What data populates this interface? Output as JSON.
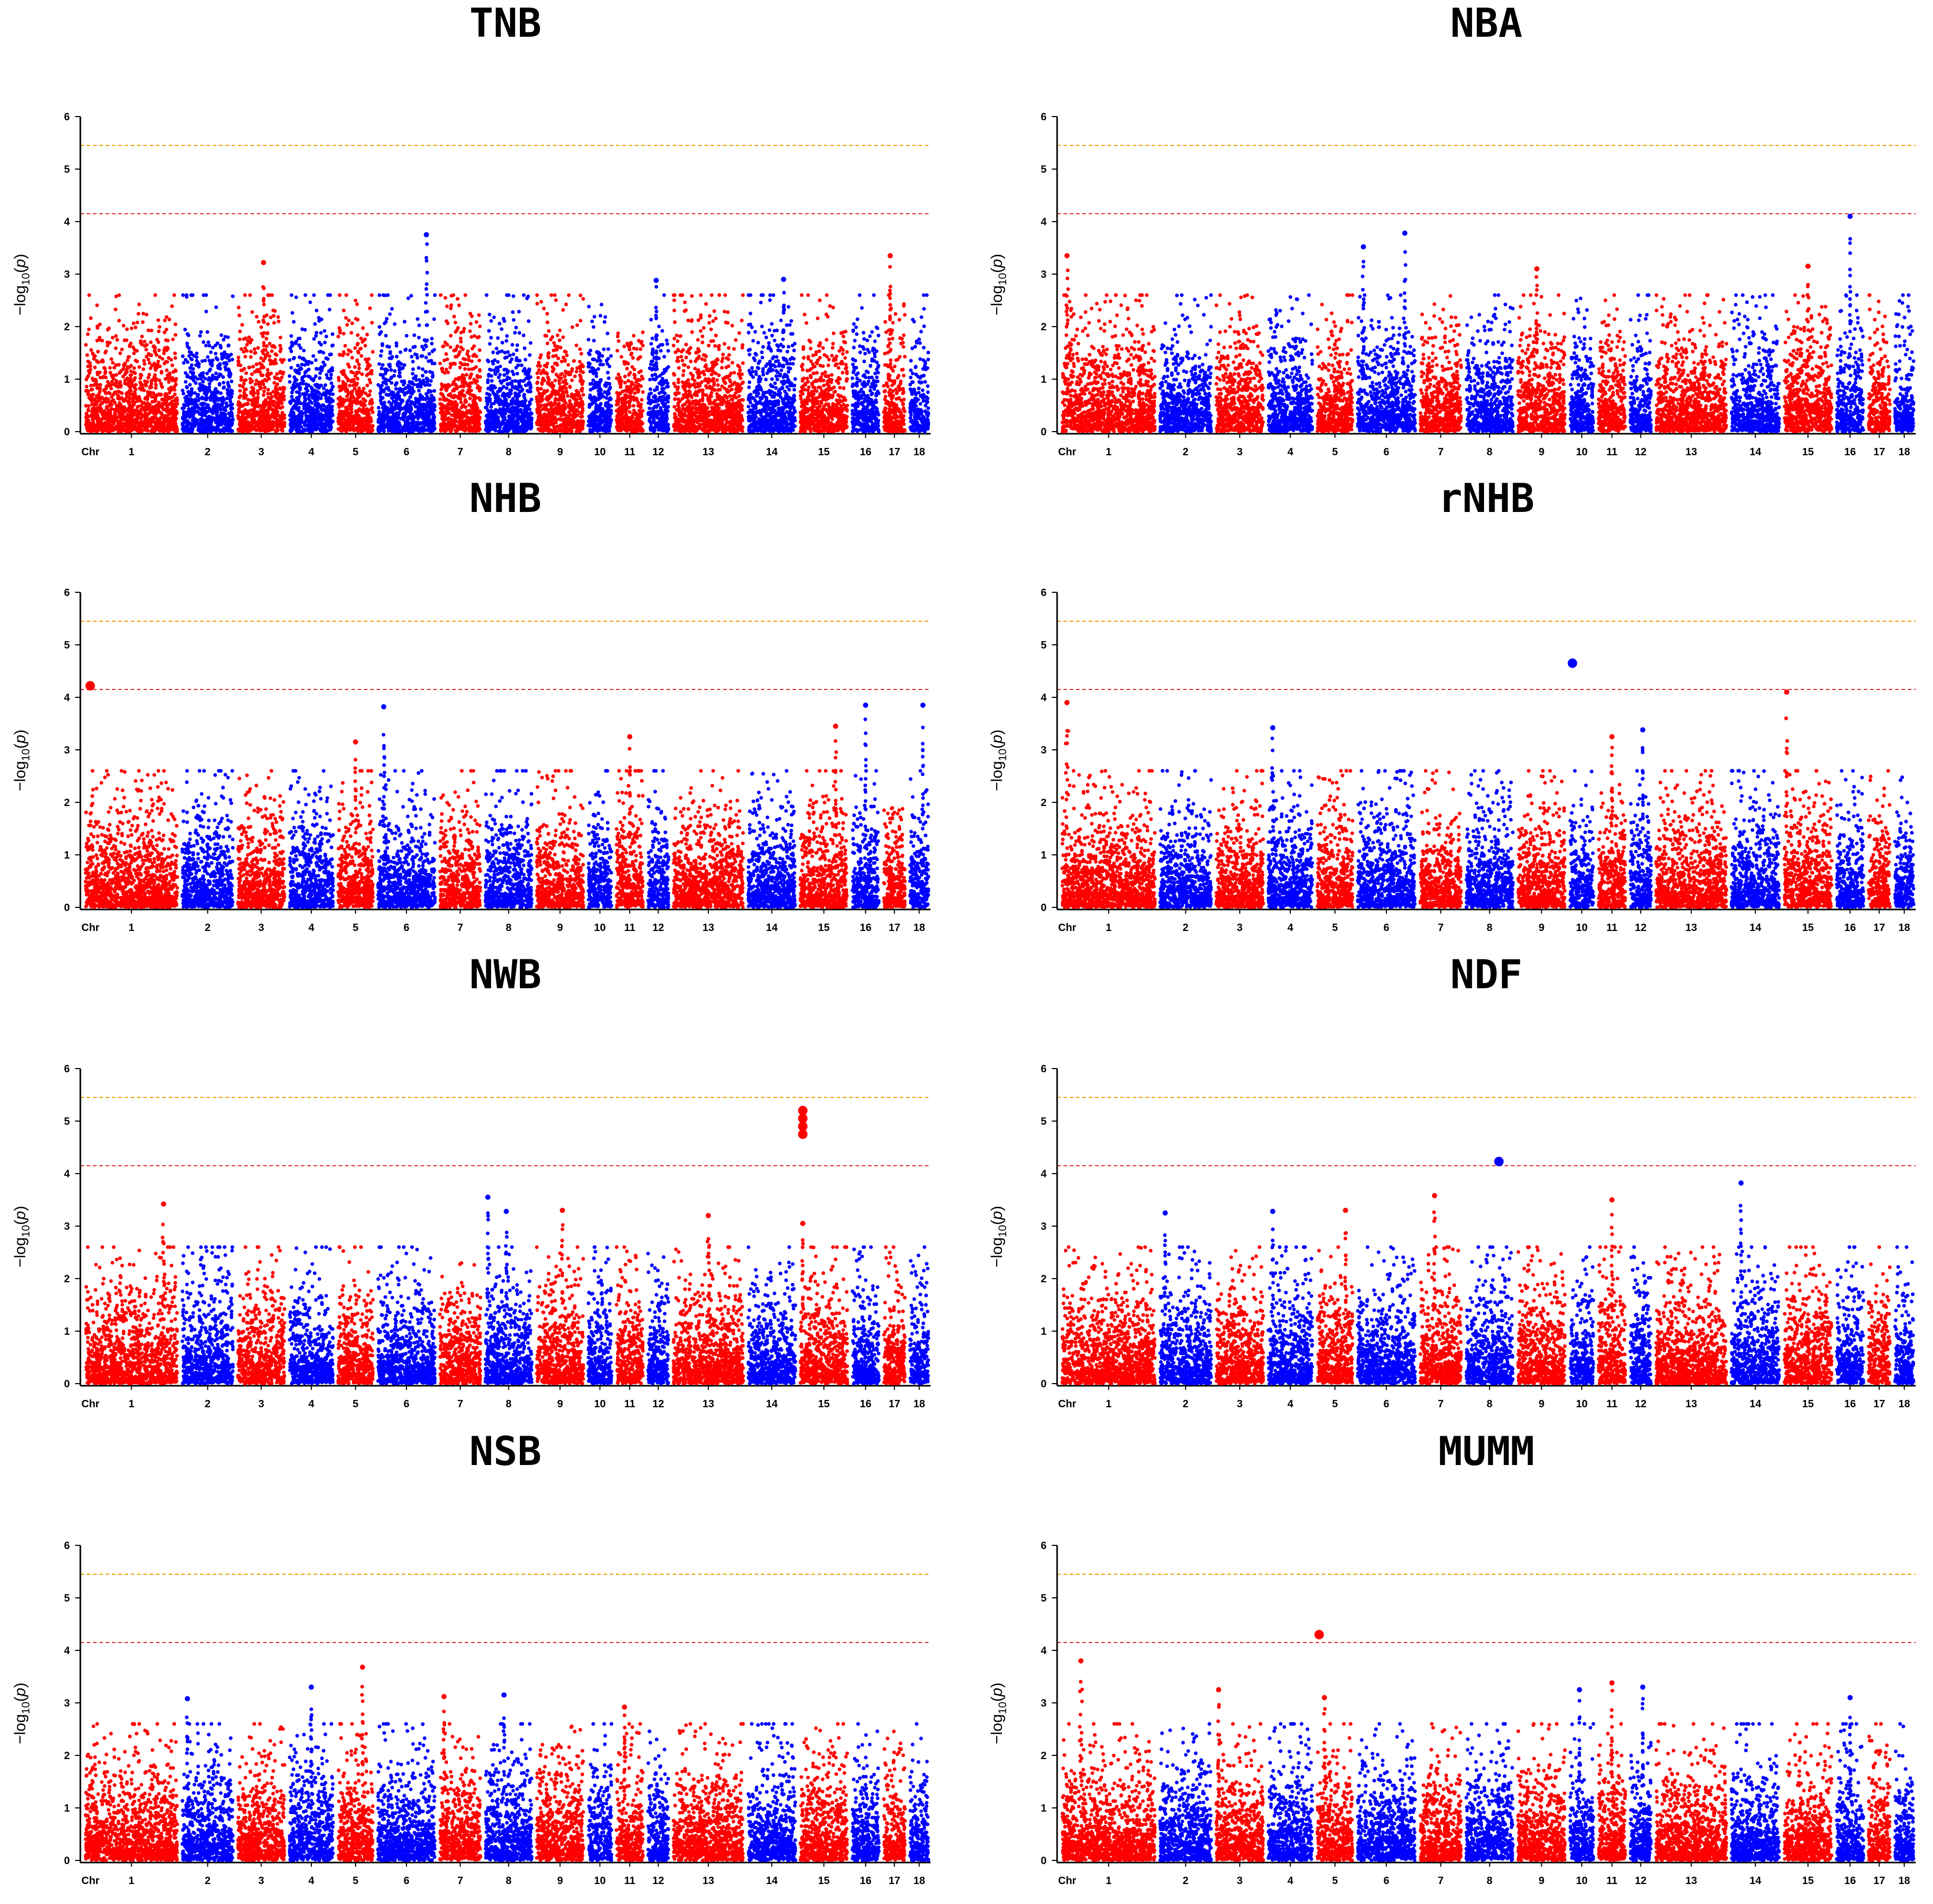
{
  "chart_data": {
    "type": "scatter",
    "subtype": "manhattan",
    "panels": [
      {
        "title": "TNB",
        "highlights": [
          {
            "chr": 6,
            "pos": 0.85,
            "y": 3.75
          },
          {
            "chr": 3,
            "pos": 0.55,
            "y": 3.22
          },
          {
            "chr": 17,
            "pos": 0.3,
            "y": 3.35
          },
          {
            "chr": 12,
            "pos": 0.4,
            "y": 2.88
          },
          {
            "chr": 14,
            "pos": 0.75,
            "y": 2.9
          }
        ],
        "big_points": []
      },
      {
        "title": "NBA",
        "highlights": [
          {
            "chr": 6,
            "pos": 0.82,
            "y": 3.78
          },
          {
            "chr": 6,
            "pos": 0.1,
            "y": 3.52
          },
          {
            "chr": 16,
            "pos": 0.5,
            "y": 4.1
          },
          {
            "chr": 1,
            "pos": 0.05,
            "y": 3.35
          },
          {
            "chr": 15,
            "pos": 0.5,
            "y": 3.15
          },
          {
            "chr": 9,
            "pos": 0.4,
            "y": 3.1
          }
        ],
        "big_points": []
      },
      {
        "title": "NHB",
        "highlights": [
          {
            "chr": 6,
            "pos": 0.1,
            "y": 3.82
          },
          {
            "chr": 16,
            "pos": 0.5,
            "y": 3.85
          },
          {
            "chr": 18,
            "pos": 0.7,
            "y": 3.85
          },
          {
            "chr": 11,
            "pos": 0.5,
            "y": 3.25
          },
          {
            "chr": 5,
            "pos": 0.5,
            "y": 3.15
          },
          {
            "chr": 15,
            "pos": 0.75,
            "y": 3.45
          }
        ],
        "big_points": [
          {
            "chr": 1,
            "pos": 0.05,
            "y": 4.22
          }
        ]
      },
      {
        "title": "rNHB",
        "highlights": [
          {
            "chr": 15,
            "pos": 0.05,
            "y": 4.1
          },
          {
            "chr": 1,
            "pos": 0.05,
            "y": 3.9
          },
          {
            "chr": 12,
            "pos": 0.6,
            "y": 3.38
          },
          {
            "chr": 4,
            "pos": 0.1,
            "y": 3.42
          },
          {
            "chr": 11,
            "pos": 0.5,
            "y": 3.25
          }
        ],
        "big_points": [
          {
            "chr": 10,
            "pos": 0.1,
            "y": 4.65
          }
        ]
      },
      {
        "title": "NWB",
        "highlights": [
          {
            "chr": 8,
            "pos": 0.05,
            "y": 3.55
          },
          {
            "chr": 1,
            "pos": 0.85,
            "y": 3.42
          },
          {
            "chr": 9,
            "pos": 0.55,
            "y": 3.3
          },
          {
            "chr": 8,
            "pos": 0.45,
            "y": 3.28
          },
          {
            "chr": 13,
            "pos": 0.5,
            "y": 3.2
          },
          {
            "chr": 15,
            "pos": 0.05,
            "y": 3.05
          }
        ],
        "big_points": [
          {
            "chr": 15,
            "pos": 0.05,
            "y": 5.2
          },
          {
            "chr": 15,
            "pos": 0.05,
            "y": 5.05
          },
          {
            "chr": 15,
            "pos": 0.05,
            "y": 4.9
          },
          {
            "chr": 15,
            "pos": 0.05,
            "y": 4.75
          }
        ]
      },
      {
        "title": "NDF",
        "highlights": [
          {
            "chr": 14,
            "pos": 0.2,
            "y": 3.82
          },
          {
            "chr": 7,
            "pos": 0.35,
            "y": 3.58
          },
          {
            "chr": 11,
            "pos": 0.5,
            "y": 3.5
          },
          {
            "chr": 5,
            "pos": 0.8,
            "y": 3.3
          },
          {
            "chr": 2,
            "pos": 0.1,
            "y": 3.25
          },
          {
            "chr": 4,
            "pos": 0.1,
            "y": 3.28
          }
        ],
        "big_points": [
          {
            "chr": 8,
            "pos": 0.7,
            "y": 4.23
          }
        ]
      },
      {
        "title": "NSB",
        "highlights": [
          {
            "chr": 5,
            "pos": 0.7,
            "y": 3.68
          },
          {
            "chr": 4,
            "pos": 0.5,
            "y": 3.3
          },
          {
            "chr": 8,
            "pos": 0.4,
            "y": 3.15
          },
          {
            "chr": 7,
            "pos": 0.1,
            "y": 3.12
          },
          {
            "chr": 2,
            "pos": 0.1,
            "y": 3.08
          },
          {
            "chr": 11,
            "pos": 0.3,
            "y": 2.92
          }
        ],
        "big_points": []
      },
      {
        "title": "MUMM",
        "highlights": [
          {
            "chr": 1,
            "pos": 0.2,
            "y": 3.8
          },
          {
            "chr": 11,
            "pos": 0.5,
            "y": 3.38
          },
          {
            "chr": 12,
            "pos": 0.6,
            "y": 3.3
          },
          {
            "chr": 10,
            "pos": 0.4,
            "y": 3.25
          },
          {
            "chr": 3,
            "pos": 0.05,
            "y": 3.25
          },
          {
            "chr": 16,
            "pos": 0.5,
            "y": 3.1
          },
          {
            "chr": 5,
            "pos": 0.2,
            "y": 3.1
          }
        ],
        "big_points": [
          {
            "chr": 5,
            "pos": 0.05,
            "y": 4.3
          }
        ]
      }
    ],
    "chromosomes": [
      "1",
      "2",
      "3",
      "4",
      "5",
      "6",
      "7",
      "8",
      "9",
      "10",
      "11",
      "12",
      "13",
      "14",
      "15",
      "16",
      "17",
      "18"
    ],
    "chrom_lengths": [
      274,
      151,
      139,
      130,
      104,
      170,
      121,
      138,
      139,
      69,
      79,
      61,
      208,
      141,
      140,
      79,
      63,
      55
    ],
    "x_axis_label": "Chr",
    "ylabel": "−log10(p)",
    "ylabel_parts": {
      "prefix": "−log",
      "subscript": "10",
      "open": "(",
      "var": "p",
      "close": ")"
    },
    "ylim": [
      0,
      6
    ],
    "yticks": [
      "0",
      "1",
      "2",
      "3",
      "4",
      "5",
      "6"
    ],
    "threshold_suggestive": 4.15,
    "threshold_genomewide": 5.45,
    "colors": {
      "odd_chrom": "#ff0000",
      "even_chrom": "#0000ff",
      "threshold_suggestive": "#e03030",
      "threshold_genomewide": "#f0a000",
      "axis": "#000000"
    },
    "legend": "none",
    "grid": false
  }
}
